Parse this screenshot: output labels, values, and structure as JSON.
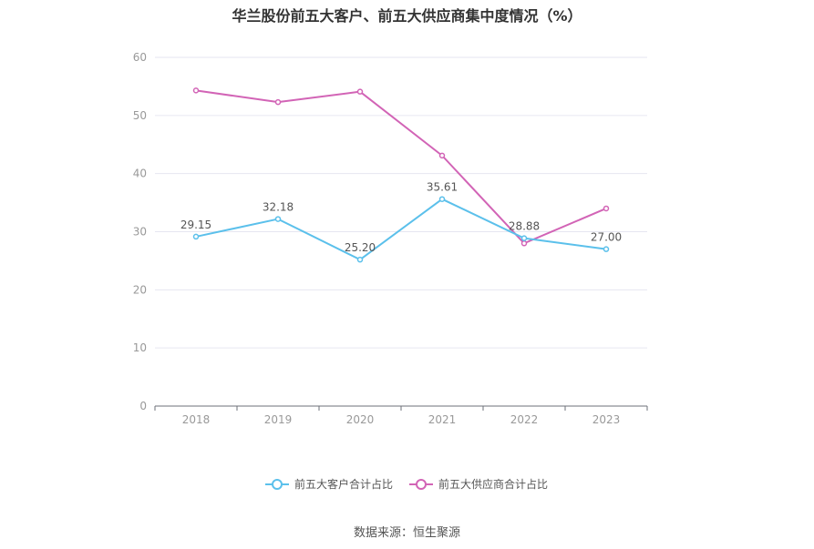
{
  "title": "华兰股份前五大客户、前五大供应商集中度情况（%）",
  "source": "数据来源：恒生聚源",
  "colors": {
    "customers": "#5bc0eb",
    "suppliers": "#d264b6",
    "grid": "#e6e6f0",
    "axis": "#6e7079",
    "tick_label": "#999999",
    "data_label": "#555555"
  },
  "chart_data": {
    "type": "line",
    "categories": [
      "2018",
      "2019",
      "2020",
      "2021",
      "2022",
      "2023"
    ],
    "ylim": [
      0,
      60
    ],
    "yticks": [
      0,
      10,
      20,
      30,
      40,
      50,
      60
    ],
    "grid": true,
    "legend_position": "bottom",
    "series": [
      {
        "name": "前五大客户合计占比",
        "color_key": "customers",
        "values": [
          29.15,
          32.18,
          25.2,
          35.61,
          28.88,
          27.0
        ],
        "labels": [
          "29.15",
          "32.18",
          "25.20",
          "35.61",
          "28.88",
          "27.00"
        ],
        "show_labels": true
      },
      {
        "name": "前五大供应商合计占比",
        "color_key": "suppliers",
        "values": [
          54.3,
          52.3,
          54.1,
          43.1,
          28.0,
          34.0
        ],
        "show_labels": false
      }
    ]
  }
}
